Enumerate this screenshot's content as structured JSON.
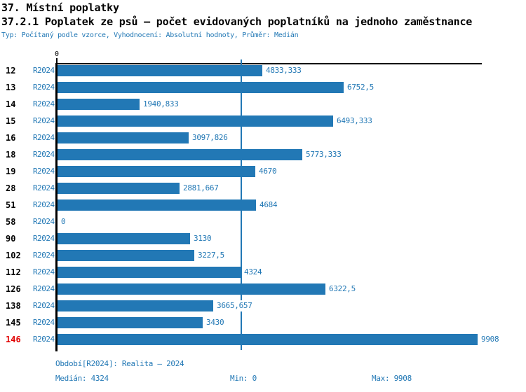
{
  "header": {
    "title1": "37. Místní poplatky",
    "title2": "37.2.1 Poplatek ze psů – počet evidovaných poplatníků na jednoho zaměstnance",
    "subtitle": "Typ: Počítaný podle vzorce, Vyhodnocení: Absolutní hodnoty, Průměr: Medián"
  },
  "chart_data": {
    "type": "bar",
    "orientation": "horizontal",
    "title": "37.2.1 Poplatek ze psů – počet evidovaných poplatníků na jednoho zaměstnance",
    "series_name": "R2024",
    "zero_tick_label": "0",
    "xlim": [
      0,
      9908
    ],
    "median_line": 4324,
    "grid": "single vertical median reference line",
    "legend_position": "none",
    "categories": [
      "12",
      "13",
      "14",
      "15",
      "16",
      "18",
      "19",
      "28",
      "51",
      "58",
      "90",
      "102",
      "112",
      "126",
      "138",
      "145",
      "146"
    ],
    "rows": [
      {
        "category": "12",
        "period": "R2024",
        "value": 4833.333,
        "label": "4833,333",
        "highlight": false
      },
      {
        "category": "13",
        "period": "R2024",
        "value": 6752.5,
        "label": "6752,5",
        "highlight": false
      },
      {
        "category": "14",
        "period": "R2024",
        "value": 1940.833,
        "label": "1940,833",
        "highlight": false
      },
      {
        "category": "15",
        "period": "R2024",
        "value": 6493.333,
        "label": "6493,333",
        "highlight": false
      },
      {
        "category": "16",
        "period": "R2024",
        "value": 3097.826,
        "label": "3097,826",
        "highlight": false
      },
      {
        "category": "18",
        "period": "R2024",
        "value": 5773.333,
        "label": "5773,333",
        "highlight": false
      },
      {
        "category": "19",
        "period": "R2024",
        "value": 4670,
        "label": "4670",
        "highlight": false
      },
      {
        "category": "28",
        "period": "R2024",
        "value": 2881.667,
        "label": "2881,667",
        "highlight": false
      },
      {
        "category": "51",
        "period": "R2024",
        "value": 4684,
        "label": "4684",
        "highlight": false
      },
      {
        "category": "58",
        "period": "R2024",
        "value": 0,
        "label": "0",
        "highlight": false
      },
      {
        "category": "90",
        "period": "R2024",
        "value": 3130,
        "label": "3130",
        "highlight": false
      },
      {
        "category": "102",
        "period": "R2024",
        "value": 3227.5,
        "label": "3227,5",
        "highlight": false
      },
      {
        "category": "112",
        "period": "R2024",
        "value": 4324,
        "label": "4324",
        "highlight": false
      },
      {
        "category": "126",
        "period": "R2024",
        "value": 6322.5,
        "label": "6322,5",
        "highlight": false
      },
      {
        "category": "138",
        "period": "R2024",
        "value": 3665.657,
        "label": "3665,657",
        "highlight": false
      },
      {
        "category": "145",
        "period": "R2024",
        "value": 3430,
        "label": "3430",
        "highlight": false
      },
      {
        "category": "146",
        "period": "R2024",
        "value": 9908,
        "label": "9908",
        "highlight": true
      }
    ],
    "colors": {
      "bar": "#2278b5",
      "text_blue": "#1f77b4",
      "highlight_red": "#e10000",
      "axis_black": "#000000"
    }
  },
  "footer": {
    "period_info": "Období[R2024]: Realita – 2024",
    "median": "Medián: 4324",
    "min": "Min: 0",
    "max": "Max: 9908"
  }
}
